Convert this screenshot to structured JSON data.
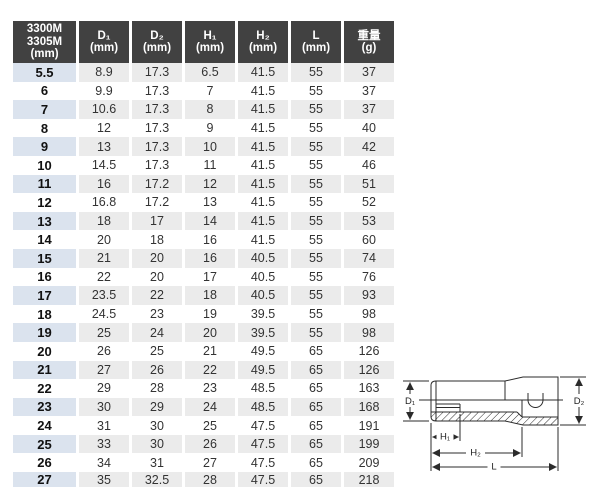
{
  "colors": {
    "header_bg": "#414141",
    "stripe_bg": "#ebebeb",
    "stripe_first_col_bg": "#dbe3ee",
    "line_color": "#2b2b2b"
  },
  "table": {
    "header": {
      "columns": [
        {
          "lines": [
            "3300M",
            "3305M",
            "(mm)"
          ]
        },
        {
          "lines": [
            "D₁",
            "(mm)"
          ]
        },
        {
          "lines": [
            "D₂",
            "(mm)"
          ]
        },
        {
          "lines": [
            "H₁",
            "(mm)"
          ]
        },
        {
          "lines": [
            "H₂",
            "(mm)"
          ]
        },
        {
          "lines": [
            "L",
            "(mm)"
          ]
        },
        {
          "lines": [
            "重量",
            "(g)"
          ]
        }
      ]
    },
    "rows": [
      [
        "5.5",
        "8.9",
        "17.3",
        "6.5",
        "41.5",
        "55",
        "37"
      ],
      [
        "6",
        "9.9",
        "17.3",
        "7",
        "41.5",
        "55",
        "37"
      ],
      [
        "7",
        "10.6",
        "17.3",
        "8",
        "41.5",
        "55",
        "37"
      ],
      [
        "8",
        "12",
        "17.3",
        "9",
        "41.5",
        "55",
        "40"
      ],
      [
        "9",
        "13",
        "17.3",
        "10",
        "41.5",
        "55",
        "42"
      ],
      [
        "10",
        "14.5",
        "17.3",
        "11",
        "41.5",
        "55",
        "46"
      ],
      [
        "11",
        "16",
        "17.2",
        "12",
        "41.5",
        "55",
        "51"
      ],
      [
        "12",
        "16.8",
        "17.2",
        "13",
        "41.5",
        "55",
        "52"
      ],
      [
        "13",
        "18",
        "17",
        "14",
        "41.5",
        "55",
        "53"
      ],
      [
        "14",
        "20",
        "18",
        "16",
        "41.5",
        "55",
        "60"
      ],
      [
        "15",
        "21",
        "20",
        "16",
        "40.5",
        "55",
        "74"
      ],
      [
        "16",
        "22",
        "20",
        "17",
        "40.5",
        "55",
        "76"
      ],
      [
        "17",
        "23.5",
        "22",
        "18",
        "40.5",
        "55",
        "93"
      ],
      [
        "18",
        "24.5",
        "23",
        "19",
        "39.5",
        "55",
        "98"
      ],
      [
        "19",
        "25",
        "24",
        "20",
        "39.5",
        "55",
        "98"
      ],
      [
        "20",
        "26",
        "25",
        "21",
        "49.5",
        "65",
        "126"
      ],
      [
        "21",
        "27",
        "26",
        "22",
        "49.5",
        "65",
        "126"
      ],
      [
        "22",
        "29",
        "28",
        "23",
        "48.5",
        "65",
        "163"
      ],
      [
        "23",
        "30",
        "29",
        "24",
        "48.5",
        "65",
        "168"
      ],
      [
        "24",
        "31",
        "30",
        "25",
        "47.5",
        "65",
        "191"
      ],
      [
        "25",
        "33",
        "30",
        "26",
        "47.5",
        "65",
        "199"
      ],
      [
        "26",
        "34",
        "31",
        "27",
        "47.5",
        "65",
        "209"
      ],
      [
        "27",
        "35",
        "32.5",
        "28",
        "47.5",
        "65",
        "218"
      ]
    ]
  },
  "diagram": {
    "labels": {
      "d1": "D₁",
      "d2": "D₂",
      "h1": "H₁",
      "h2": "H₂",
      "l": "L"
    }
  }
}
